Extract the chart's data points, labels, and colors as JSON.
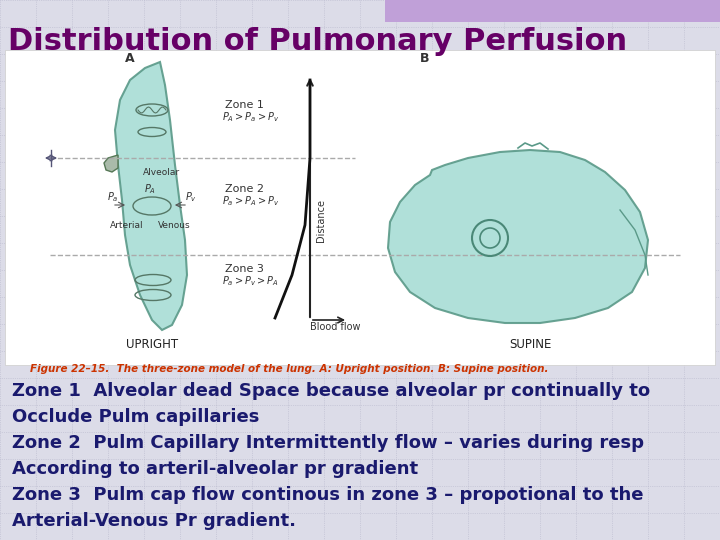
{
  "title": "Distribution of Pulmonary Perfusion",
  "title_color": "#660066",
  "title_fontsize": 22,
  "bg_color": "#dcdce8",
  "header_bar_color": "#c0a0d8",
  "grid_color": "#b8b8cc",
  "text_block": [
    "Zone 1  Alveolar dead Space because alveolar pr continually to",
    "Occlude Pulm capillaries",
    "Zone 2  Pulm Capillary Intermittently flow – varies during resp",
    "According to arteril-alveolar pr gradient",
    "Zone 3  Pulm cap flow continous in zone 3 – propotional to the",
    "Arterial-Venous Pr gradient."
  ],
  "text_color": "#1a1a6e",
  "text_fontsize": 13,
  "image_caption": "Figure 22–15.  The three-zone model of the lung. A: Upright position. B: Supine position.",
  "caption_color": "#cc3300",
  "label_A": "A",
  "label_B": "B",
  "label_upright": "UPRIGHT",
  "label_supine": "SUPINE",
  "lung_fill": "#a8ddd5",
  "lung_edge": "#5a9988",
  "zone_text_color": "#333333",
  "dashed_color": "#aaaaaa",
  "flow_line_color": "#111111"
}
